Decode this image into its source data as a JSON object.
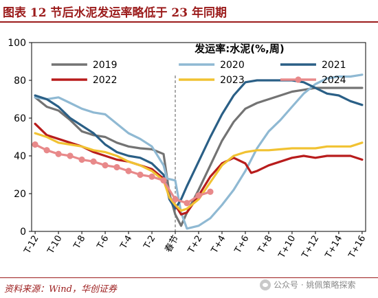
{
  "header": {
    "title": "图表 12    节后水泥发运率略低于 23 年同期"
  },
  "source": {
    "text": "资料来源：Wind，华创证券"
  },
  "watermark": {
    "icon": "wechat-icon",
    "text": "公众号 · 姚佩策略探索"
  },
  "chart_data": {
    "type": "line",
    "title": "发运率:水泥(%,周)",
    "xlabel": "",
    "ylabel": "",
    "ylim": [
      0,
      100
    ],
    "yticks": [
      0,
      20,
      40,
      60,
      80,
      100
    ],
    "xticks": [
      "T-12",
      "T-10",
      "T-8",
      "T-6",
      "T-4",
      "T-2",
      "春节",
      "T+2",
      "T+4",
      "T+6",
      "T+8",
      "T+10",
      "T+12",
      "T+14",
      "T+16"
    ],
    "x_range": [
      -12.3,
      16.3
    ],
    "festival_line": 0,
    "legend_placement": "top, three columns",
    "series": [
      {
        "name": "2019",
        "color": "#737373",
        "marker": false,
        "points": [
          [
            -12,
            71
          ],
          [
            -11,
            66
          ],
          [
            -10,
            64
          ],
          [
            -9,
            59
          ],
          [
            -8,
            53
          ],
          [
            -7,
            51
          ],
          [
            -6,
            50
          ],
          [
            -5,
            47
          ],
          [
            -4,
            45
          ],
          [
            -3,
            44
          ],
          [
            -2,
            43.5
          ],
          [
            -1,
            41
          ],
          [
            -0.5,
            20
          ],
          [
            0,
            9
          ],
          [
            0.5,
            3
          ],
          [
            1,
            10
          ],
          [
            2,
            22
          ],
          [
            3,
            35
          ],
          [
            4,
            48
          ],
          [
            5,
            58
          ],
          [
            6,
            65
          ],
          [
            7,
            68
          ],
          [
            8,
            70
          ],
          [
            9,
            72
          ],
          [
            10,
            74
          ],
          [
            11,
            75
          ],
          [
            12,
            76
          ],
          [
            13,
            76
          ],
          [
            14,
            76
          ],
          [
            15,
            76
          ],
          [
            16,
            76
          ]
        ]
      },
      {
        "name": "2020",
        "color": "#8fb9d3",
        "marker": false,
        "points": [
          [
            -12,
            71
          ],
          [
            -11,
            70
          ],
          [
            -10,
            71
          ],
          [
            -9,
            68
          ],
          [
            -8,
            65
          ],
          [
            -7,
            63
          ],
          [
            -6,
            62
          ],
          [
            -5,
            57
          ],
          [
            -4,
            52
          ],
          [
            -3,
            49
          ],
          [
            -2,
            45
          ],
          [
            -1,
            35
          ],
          [
            -0.7,
            28
          ],
          [
            0,
            27
          ],
          [
            0.5,
            10
          ],
          [
            1,
            1.5
          ],
          [
            2,
            3
          ],
          [
            3,
            7
          ],
          [
            4,
            14
          ],
          [
            5,
            22
          ],
          [
            6,
            32
          ],
          [
            7,
            44
          ],
          [
            8,
            53
          ],
          [
            9,
            59
          ],
          [
            10,
            66
          ],
          [
            11,
            73
          ],
          [
            12,
            78
          ],
          [
            13,
            81
          ],
          [
            14,
            82
          ],
          [
            15,
            82
          ],
          [
            16,
            83
          ]
        ]
      },
      {
        "name": "2021",
        "color": "#2a5f86",
        "marker": false,
        "points": [
          [
            -12,
            72
          ],
          [
            -11,
            70
          ],
          [
            -10,
            66
          ],
          [
            -9,
            60
          ],
          [
            -8,
            56
          ],
          [
            -7,
            52
          ],
          [
            -6,
            46
          ],
          [
            -5,
            42
          ],
          [
            -4,
            40
          ],
          [
            -3,
            39
          ],
          [
            -2,
            36
          ],
          [
            -1,
            30
          ],
          [
            -0.5,
            17
          ],
          [
            0,
            12
          ],
          [
            0.5,
            17
          ],
          [
            1,
            24
          ],
          [
            2,
            37
          ],
          [
            3,
            50
          ],
          [
            4,
            62
          ],
          [
            5,
            72
          ],
          [
            6,
            79
          ],
          [
            7,
            80
          ],
          [
            8,
            80
          ],
          [
            9,
            80
          ],
          [
            10,
            80
          ],
          [
            11,
            79
          ],
          [
            12,
            76
          ],
          [
            13,
            73
          ],
          [
            14,
            72
          ],
          [
            15,
            69
          ],
          [
            16,
            67
          ]
        ]
      },
      {
        "name": "2022",
        "color": "#b81c1c",
        "marker": false,
        "points": [
          [
            -12,
            57
          ],
          [
            -11,
            51
          ],
          [
            -10,
            49
          ],
          [
            -9,
            47
          ],
          [
            -8,
            45
          ],
          [
            -7,
            42
          ],
          [
            -6,
            40
          ],
          [
            -5,
            38
          ],
          [
            -4,
            37
          ],
          [
            -3,
            35
          ],
          [
            -2,
            33
          ],
          [
            -1,
            28
          ],
          [
            -0.5,
            18
          ],
          [
            0,
            14
          ],
          [
            0.5,
            9
          ],
          [
            1,
            10
          ],
          [
            2,
            19
          ],
          [
            3,
            29
          ],
          [
            4,
            36
          ],
          [
            5,
            39
          ],
          [
            6,
            36
          ],
          [
            6.5,
            31
          ],
          [
            7,
            32
          ],
          [
            8,
            35
          ],
          [
            9,
            37
          ],
          [
            10,
            39
          ],
          [
            11,
            40
          ],
          [
            12,
            39
          ],
          [
            13,
            40
          ],
          [
            14,
            40
          ],
          [
            15,
            40
          ],
          [
            16,
            38
          ]
        ]
      },
      {
        "name": "2023",
        "color": "#f1c232",
        "marker": false,
        "points": [
          [
            -12,
            52
          ],
          [
            -11,
            50
          ],
          [
            -10,
            47
          ],
          [
            -9,
            46
          ],
          [
            -8,
            45
          ],
          [
            -7,
            43
          ],
          [
            -6,
            42
          ],
          [
            -5,
            40
          ],
          [
            -4,
            37
          ],
          [
            -3,
            35
          ],
          [
            -2,
            32
          ],
          [
            -1,
            27
          ],
          [
            -0.5,
            18
          ],
          [
            0,
            14
          ],
          [
            0.5,
            11
          ],
          [
            1,
            12
          ],
          [
            2,
            17
          ],
          [
            3,
            26
          ],
          [
            4,
            35
          ],
          [
            5,
            40
          ],
          [
            6,
            42
          ],
          [
            7,
            43
          ],
          [
            8,
            43
          ],
          [
            9,
            43.5
          ],
          [
            10,
            44
          ],
          [
            11,
            44
          ],
          [
            12,
            44
          ],
          [
            13,
            45
          ],
          [
            14,
            45
          ],
          [
            15,
            45
          ],
          [
            16,
            47
          ]
        ]
      },
      {
        "name": "2024",
        "color": "#e8898a",
        "marker": true,
        "points": [
          [
            -12,
            46
          ],
          [
            -11,
            43
          ],
          [
            -10,
            41
          ],
          [
            -9,
            40
          ],
          [
            -8,
            38
          ],
          [
            -7,
            37
          ],
          [
            -6,
            35
          ],
          [
            -5,
            34
          ],
          [
            -4,
            32
          ],
          [
            -3,
            30
          ],
          [
            -2,
            29
          ],
          [
            -1,
            27
          ],
          [
            0,
            17
          ],
          [
            1,
            15
          ],
          [
            2,
            19
          ],
          [
            3,
            21
          ]
        ]
      }
    ]
  }
}
